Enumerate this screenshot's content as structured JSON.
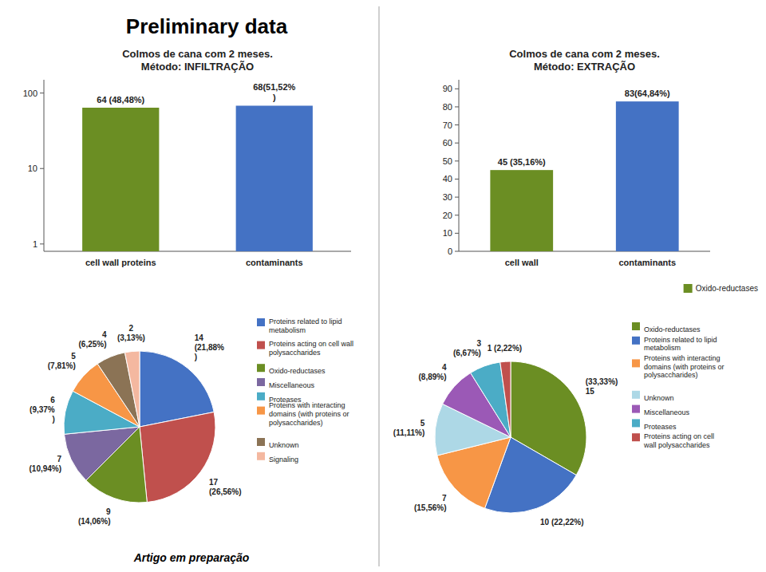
{
  "title": "Preliminary data",
  "annotations": [
    "Artigo em preparação"
  ],
  "chart_data": [
    {
      "type": "bar",
      "title": "Colmos de cana com 2 meses.\nMétodo: INFILTRAÇÃO",
      "categories": [
        "cell wall proteins",
        "contaminants"
      ],
      "values": [
        64,
        68
      ],
      "value_labels": [
        "64 (48,48%)",
        "68(51,52%\n)"
      ],
      "colors": [
        "#6b8e23",
        "#4472c4"
      ],
      "log": "y",
      "ylim": [
        0.8,
        150
      ],
      "yticks": [
        1,
        10,
        100
      ],
      "data_labels": true
    },
    {
      "type": "pie",
      "categories": [
        "Proteins related to lipid\nmetabolism",
        "Proteins acting on cell wall\npolysaccharides",
        "Oxido-reductases",
        "Miscellaneous",
        "Proteases",
        "Proteins with interacting\ndomains (with proteins or\npolysaccharides)",
        "Unknown",
        "Signaling"
      ],
      "values": [
        14,
        17,
        9,
        7,
        6,
        5,
        4,
        2
      ],
      "value_labels": [
        "14\n(21,88%\n)",
        "17\n(26,56%)",
        "9\n(14,06%)",
        "7\n(10,94%)",
        "6\n(9,37%\n)",
        "5\n(7,81%)",
        "4\n(6,25%)",
        "2\n(3,13%)"
      ],
      "colors": [
        "#4472c4",
        "#c0504d",
        "#6b8e23",
        "#7b68a0",
        "#4bacc6",
        "#f79646",
        "#8b7355",
        "#f4b8a0"
      ],
      "data_labels": true,
      "legend": "right"
    },
    {
      "type": "bar",
      "title": "Colmos de cana com 2 meses.\nMétodo: EXTRAÇÃO",
      "categories": [
        "cell wall",
        "contaminants"
      ],
      "series": [
        {
          "name": "Oxido-reductases",
          "color": "#6b8e23",
          "colors": [
            "#6b8e23",
            "#4472c4"
          ],
          "values": [
            45,
            83
          ],
          "value_labels": [
            "45 (35,16%)",
            "83(64,84%)"
          ]
        }
      ],
      "ylim": [
        0,
        95
      ],
      "yticks": [
        0,
        10,
        20,
        30,
        40,
        50,
        60,
        70,
        80,
        90
      ],
      "data_labels": true,
      "legend": "lower right"
    },
    {
      "type": "pie",
      "categories": [
        "Oxido-reductases",
        "Proteins related to lipid\nmetabolism",
        "Proteins with interacting\ndomains (with proteins or\npolysaccharides)",
        "Unknown",
        "Miscellaneous",
        "Proteases",
        "Proteins acting on cell\nwall polysaccharides"
      ],
      "values": [
        15,
        10,
        7,
        5,
        4,
        3,
        1
      ],
      "value_labels": [
        "(33,33%)\n15",
        "10 (22,22%)",
        "7\n(15,56%)",
        "5\n(11,11%)",
        "4\n(8,89%)",
        "3\n(6,67%)",
        "1 (2,22%)"
      ],
      "colors": [
        "#6b8e23",
        "#4472c4",
        "#f79646",
        "#add8e6",
        "#9b59b6",
        "#4bacc6",
        "#c0504d"
      ],
      "data_labels": true,
      "legend": "right"
    }
  ]
}
